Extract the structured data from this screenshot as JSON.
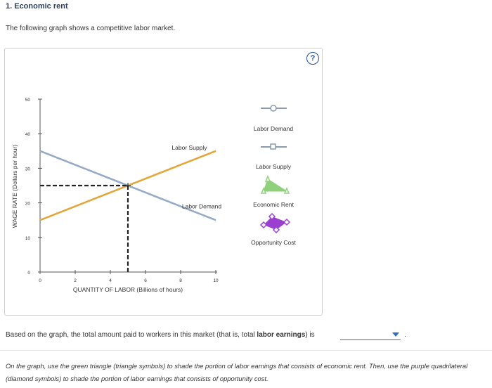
{
  "header": {
    "title": "1. Economic rent"
  },
  "intro": "The following graph shows a competitive labor market.",
  "help_symbol": "?",
  "chart_data": {
    "type": "line",
    "ylabel": "WAGE RATE (Dollars per hour)",
    "xlabel": "QUANTITY OF LABOR (Billions of hours)",
    "xlim": [
      0,
      10
    ],
    "ylim": [
      0,
      50
    ],
    "x_ticks": [
      0,
      2,
      4,
      6,
      8,
      10
    ],
    "y_ticks": [
      0,
      10,
      20,
      30,
      40,
      50
    ],
    "series": [
      {
        "name": "Labor Supply",
        "color": "#e3a63b",
        "points": [
          [
            0,
            15
          ],
          [
            10,
            35
          ]
        ]
      },
      {
        "name": "Labor Demand",
        "color": "#94aac6",
        "points": [
          [
            0,
            35
          ],
          [
            10,
            15
          ]
        ]
      }
    ],
    "equilibrium": {
      "x": 5,
      "y": 25
    }
  },
  "legend": [
    {
      "label": "Labor Demand",
      "icon": "circle-line-icon",
      "color": "#8a9bb0"
    },
    {
      "label": "Labor Supply",
      "icon": "square-line-icon",
      "color": "#8a9bb0"
    },
    {
      "label": "Economic Rent",
      "icon": "green-triangle-icon",
      "color": "#8ed17a"
    },
    {
      "label": "Opportunity Cost",
      "icon": "purple-diamond-icon",
      "color": "#9b3fcf"
    }
  ],
  "question": {
    "before": "Based on the graph, the total amount paid to workers in this market (that is, total ",
    "bold": "labor earnings",
    "after": ") is",
    "period": "."
  },
  "instructions": "On the graph, use the green triangle (triangle symbols) to shade the portion of labor earnings that consists of economic rent. Then, use the purple quadrilateral (diamond symbols) to shade the portion of labor earnings that consists of opportunity cost."
}
